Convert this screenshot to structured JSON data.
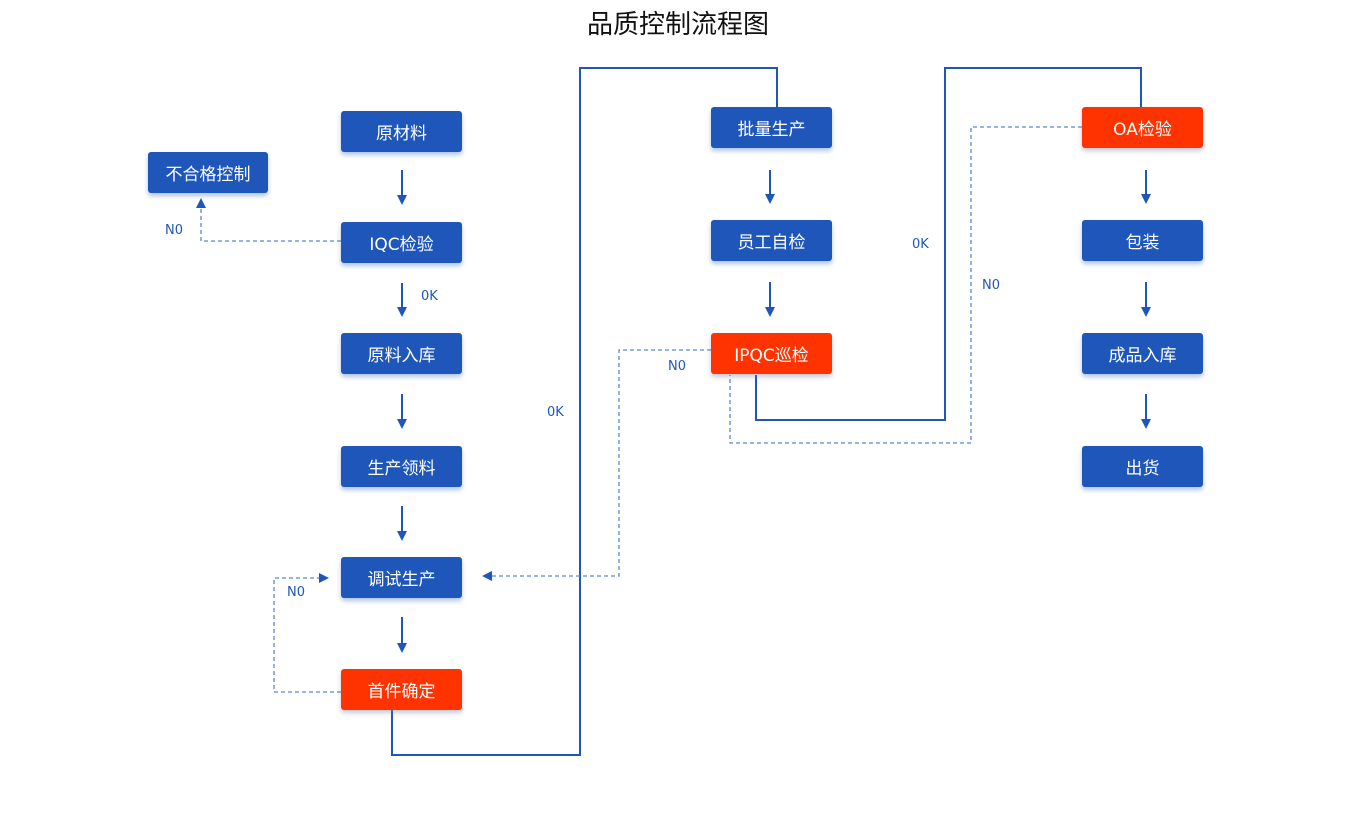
{
  "title": "品质控制流程图",
  "colors": {
    "primary": "#1f56b9",
    "check": "#ff3300"
  },
  "nodes": {
    "raw_material": "原材料",
    "nonconforming_control": "不合格控制",
    "iqc": "IQC检验",
    "raw_storage": "原料入库",
    "production_picking": "生产领料",
    "trial_production": "调试生产",
    "first_article": "首件确定",
    "mass_production": "批量生产",
    "self_inspection": "员工自检",
    "ipqc": "IPQC巡检",
    "oa": "OA检验",
    "packaging": "包装",
    "finished_storage": "成品入库",
    "shipping": "出货"
  },
  "labels": {
    "iqc_no": "N0",
    "iqc_ok": "0K",
    "first_no": "N0",
    "first_ok": "0K",
    "ipqc_no": "N0",
    "ipqc_ok": "0K",
    "oa_no": "N0"
  }
}
